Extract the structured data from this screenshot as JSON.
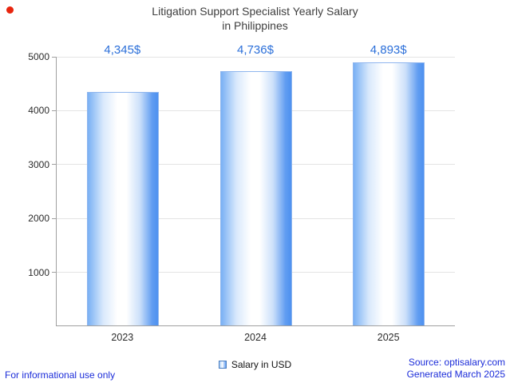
{
  "title": {
    "line1": "Litigation Support Specialist Yearly Salary",
    "line2": "in Philippines"
  },
  "chart_data": {
    "type": "bar",
    "title": "Litigation Support Specialist Yearly Salary in Philippines",
    "categories": [
      "2023",
      "2024",
      "2025"
    ],
    "values": [
      4345,
      4736,
      4893
    ],
    "value_labels": [
      "4,345$",
      "4,736$",
      "4,893$"
    ],
    "xlabel": "",
    "ylabel": "",
    "ylim": [
      0,
      5000
    ],
    "yticks": [
      1000,
      2000,
      3000,
      4000,
      5000
    ],
    "grid": true,
    "legend_position": "bottom",
    "legend_label": "Salary in USD"
  },
  "legend": {
    "label": "Salary in USD"
  },
  "footer": {
    "left": "For informational use only",
    "source": "Source: optisalary.com",
    "generated": "Generated March 2025"
  },
  "icons": {
    "red_dot": "red-dot-indicator"
  },
  "colors": {
    "accent_blue": "#2b6fd9",
    "footer_blue": "#1b2cd9",
    "title_gray": "#3e3e3e",
    "bar_edge_blue": "#4e91f0",
    "bar_light_blue": "#79b0f4",
    "axis_gray": "#a0a0a0",
    "grid_gray": "#e4e4e4",
    "red_dot": "#e8250e"
  }
}
